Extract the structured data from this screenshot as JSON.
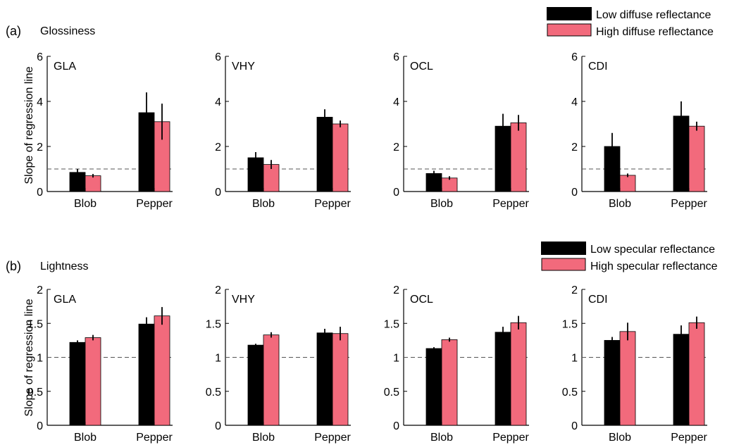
{
  "colors": {
    "low": "#000000",
    "high": "#f26a7c",
    "axis": "#000000",
    "refline": "#555555"
  },
  "rows": [
    {
      "panel_letter": "(a)",
      "panel_title": "Glossiness",
      "ylabel": "Slope of regression line",
      "legend": [
        "Low diffuse reflectance",
        "High diffuse reflectance"
      ],
      "ylim": [
        0,
        6
      ],
      "yticks": [
        "0",
        "2",
        "4",
        "6"
      ],
      "ytick_values": [
        0,
        2,
        4,
        6
      ],
      "refline": 1
    },
    {
      "panel_letter": "(b)",
      "panel_title": "Lightness",
      "ylabel": "Slope of regression line",
      "legend": [
        "Low specular reflectance",
        "High specular reflectance"
      ],
      "ylim": [
        0,
        2
      ],
      "yticks": [
        "0",
        "0.5",
        "1",
        "1.5",
        "2"
      ],
      "ytick_values": [
        0,
        0.5,
        1,
        1.5,
        2
      ],
      "refline": 1
    }
  ],
  "chart_data": [
    {
      "type": "bar",
      "row": 0,
      "title": "GLA",
      "categories": [
        "Blob",
        "Pepper"
      ],
      "ylim": [
        0,
        6
      ],
      "series": [
        {
          "name": "Low diffuse reflectance",
          "values": [
            0.85,
            3.5
          ],
          "errors": [
            0.15,
            0.9
          ]
        },
        {
          "name": "High diffuse reflectance",
          "values": [
            0.7,
            3.1
          ],
          "errors": [
            0.08,
            0.8
          ]
        }
      ]
    },
    {
      "type": "bar",
      "row": 0,
      "title": "VHY",
      "categories": [
        "Blob",
        "Pepper"
      ],
      "ylim": [
        0,
        6
      ],
      "series": [
        {
          "name": "Low diffuse reflectance",
          "values": [
            1.5,
            3.3
          ],
          "errors": [
            0.25,
            0.35
          ]
        },
        {
          "name": "High diffuse reflectance",
          "values": [
            1.2,
            3.0
          ],
          "errors": [
            0.2,
            0.15
          ]
        }
      ]
    },
    {
      "type": "bar",
      "row": 0,
      "title": "OCL",
      "categories": [
        "Blob",
        "Pepper"
      ],
      "ylim": [
        0,
        6
      ],
      "series": [
        {
          "name": "Low diffuse reflectance",
          "values": [
            0.8,
            2.9
          ],
          "errors": [
            0.12,
            0.55
          ]
        },
        {
          "name": "High diffuse reflectance",
          "values": [
            0.6,
            3.05
          ],
          "errors": [
            0.08,
            0.35
          ]
        }
      ]
    },
    {
      "type": "bar",
      "row": 0,
      "title": "CDI",
      "categories": [
        "Blob",
        "Pepper"
      ],
      "ylim": [
        0,
        6
      ],
      "series": [
        {
          "name": "Low diffuse reflectance",
          "values": [
            2.0,
            3.35
          ],
          "errors": [
            0.6,
            0.65
          ]
        },
        {
          "name": "High diffuse reflectance",
          "values": [
            0.72,
            2.9
          ],
          "errors": [
            0.08,
            0.2
          ]
        }
      ]
    },
    {
      "type": "bar",
      "row": 1,
      "title": "GLA",
      "categories": [
        "Blob",
        "Pepper"
      ],
      "ylim": [
        0,
        2
      ],
      "series": [
        {
          "name": "Low specular reflectance",
          "values": [
            1.22,
            1.49
          ],
          "errors": [
            0.03,
            0.1
          ]
        },
        {
          "name": "High specular reflectance",
          "values": [
            1.29,
            1.61
          ],
          "errors": [
            0.04,
            0.13
          ]
        }
      ]
    },
    {
      "type": "bar",
      "row": 1,
      "title": "VHY",
      "categories": [
        "Blob",
        "Pepper"
      ],
      "ylim": [
        0,
        2
      ],
      "series": [
        {
          "name": "Low specular reflectance",
          "values": [
            1.18,
            1.36
          ],
          "errors": [
            0.02,
            0.06
          ]
        },
        {
          "name": "High specular reflectance",
          "values": [
            1.33,
            1.35
          ],
          "errors": [
            0.04,
            0.1
          ]
        }
      ]
    },
    {
      "type": "bar",
      "row": 1,
      "title": "OCL",
      "categories": [
        "Blob",
        "Pepper"
      ],
      "ylim": [
        0,
        2
      ],
      "series": [
        {
          "name": "Low specular reflectance",
          "values": [
            1.13,
            1.37
          ],
          "errors": [
            0.02,
            0.08
          ]
        },
        {
          "name": "High specular reflectance",
          "values": [
            1.26,
            1.51
          ],
          "errors": [
            0.03,
            0.1
          ]
        }
      ]
    },
    {
      "type": "bar",
      "row": 1,
      "title": "CDI",
      "categories": [
        "Blob",
        "Pepper"
      ],
      "ylim": [
        0,
        2
      ],
      "series": [
        {
          "name": "Low specular reflectance",
          "values": [
            1.25,
            1.34
          ],
          "errors": [
            0.05,
            0.13
          ]
        },
        {
          "name": "High specular reflectance",
          "values": [
            1.38,
            1.51
          ],
          "errors": [
            0.13,
            0.09
          ]
        }
      ]
    }
  ]
}
